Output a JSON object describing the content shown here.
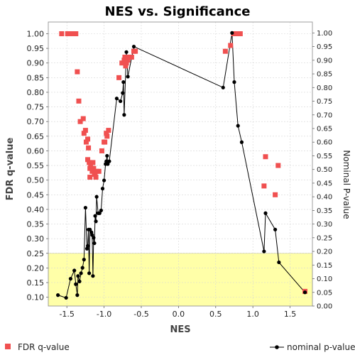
{
  "chart_data": {
    "type": "scatter",
    "title": "NES vs. Significance",
    "xlabel": "NES",
    "ylabel_left": "FDR q-value",
    "ylabel_right": "Nominal P-value",
    "xlim": [
      -1.75,
      1.8
    ],
    "ylim_left": [
      0.07,
      1.04
    ],
    "ylim_right": [
      0.0,
      1.04
    ],
    "x_ticks": [
      "-1.5",
      "-1.0",
      "-0.5",
      "0.0",
      "0.5",
      "1.0",
      "1.5"
    ],
    "y_ticks_left": [
      "0.10",
      "0.15",
      "0.20",
      "0.25",
      "0.30",
      "0.35",
      "0.40",
      "0.45",
      "0.50",
      "0.55",
      "0.60",
      "0.65",
      "0.70",
      "0.75",
      "0.80",
      "0.85",
      "0.90",
      "0.95",
      "1.00"
    ],
    "y_ticks_right": [
      "0.00",
      "0.05",
      "0.10",
      "0.15",
      "0.20",
      "0.25",
      "0.30",
      "0.35",
      "0.40",
      "0.45",
      "0.50",
      "0.55",
      "0.60",
      "0.65",
      "0.70",
      "0.75",
      "0.80",
      "0.85",
      "0.90",
      "0.95",
      "1.00"
    ],
    "threshold": {
      "fdr": 0.25,
      "color": "#ffffa8"
    },
    "grid": true,
    "legend_position": "bottom",
    "series": [
      {
        "name": "FDR q-value",
        "kind": "square-markers",
        "color": "#f05050",
        "points": [
          [
            -1.57,
            1.0
          ],
          [
            -1.49,
            1.0
          ],
          [
            -1.43,
            1.0
          ],
          [
            -1.38,
            1.0
          ],
          [
            -1.36,
            0.87
          ],
          [
            -1.34,
            0.77
          ],
          [
            -1.32,
            0.7
          ],
          [
            -1.28,
            0.71
          ],
          [
            -1.27,
            0.66
          ],
          [
            -1.25,
            0.67
          ],
          [
            -1.24,
            0.63
          ],
          [
            -1.22,
            0.64
          ],
          [
            -1.21,
            0.61
          ],
          [
            -1.22,
            0.57
          ],
          [
            -1.2,
            0.56
          ],
          [
            -1.19,
            0.54
          ],
          [
            -1.18,
            0.55
          ],
          [
            -1.19,
            0.51
          ],
          [
            -1.16,
            0.53
          ],
          [
            -1.15,
            0.56
          ],
          [
            -1.14,
            0.54
          ],
          [
            -1.13,
            0.52
          ],
          [
            -1.12,
            0.52
          ],
          [
            -1.11,
            0.51
          ],
          [
            -1.1,
            0.53
          ],
          [
            -1.07,
            0.53
          ],
          [
            -1.03,
            0.6
          ],
          [
            -1.0,
            0.63
          ],
          [
            -0.99,
            0.63
          ],
          [
            -0.97,
            0.66
          ],
          [
            -0.96,
            0.65
          ],
          [
            -0.94,
            0.67
          ],
          [
            -0.8,
            0.85
          ],
          [
            -0.76,
            0.9
          ],
          [
            -0.73,
            0.91
          ],
          [
            -0.72,
            0.92
          ],
          [
            -0.71,
            0.89
          ],
          [
            -0.7,
            0.9
          ],
          [
            -0.68,
            0.91
          ],
          [
            -0.66,
            0.92
          ],
          [
            -0.63,
            0.92
          ],
          [
            -0.6,
            0.94
          ],
          [
            -0.58,
            0.94
          ],
          [
            0.63,
            0.94
          ],
          [
            0.7,
            0.96
          ],
          [
            0.74,
            1.0
          ],
          [
            0.78,
            1.0
          ],
          [
            0.83,
            1.0
          ],
          [
            1.15,
            0.48
          ],
          [
            1.17,
            0.58
          ],
          [
            1.3,
            0.45
          ],
          [
            1.34,
            0.55
          ],
          [
            1.7,
            0.12
          ]
        ]
      },
      {
        "name": "nominal p-value",
        "kind": "line-with-dots",
        "color": "#000000",
        "points": [
          [
            -1.62,
            0.04
          ],
          [
            -1.51,
            0.03
          ],
          [
            -1.45,
            0.1
          ],
          [
            -1.4,
            0.13
          ],
          [
            -1.38,
            0.08
          ],
          [
            -1.36,
            0.04
          ],
          [
            -1.35,
            0.11
          ],
          [
            -1.33,
            0.09
          ],
          [
            -1.31,
            0.12
          ],
          [
            -1.29,
            0.14
          ],
          [
            -1.27,
            0.17
          ],
          [
            -1.25,
            0.36
          ],
          [
            -1.23,
            0.21
          ],
          [
            -1.22,
            0.22
          ],
          [
            -1.21,
            0.28
          ],
          [
            -1.2,
            0.12
          ],
          [
            -1.19,
            0.28
          ],
          [
            -1.17,
            0.27
          ],
          [
            -1.16,
            0.26
          ],
          [
            -1.15,
            0.11
          ],
          [
            -1.14,
            0.25
          ],
          [
            -1.13,
            0.23
          ],
          [
            -1.12,
            0.33
          ],
          [
            -1.11,
            0.31
          ],
          [
            -1.1,
            0.4
          ],
          [
            -1.08,
            0.34
          ],
          [
            -1.06,
            0.34
          ],
          [
            -1.04,
            0.35
          ],
          [
            -1.02,
            0.43
          ],
          [
            -1.0,
            0.46
          ],
          [
            -0.98,
            0.52
          ],
          [
            -0.97,
            0.53
          ],
          [
            -0.96,
            0.55
          ],
          [
            -0.95,
            0.52
          ],
          [
            -0.93,
            0.53
          ],
          [
            -0.83,
            0.76
          ],
          [
            -0.78,
            0.75
          ],
          [
            -0.75,
            0.78
          ],
          [
            -0.74,
            0.82
          ],
          [
            -0.73,
            0.7
          ],
          [
            -0.7,
            0.93
          ],
          [
            -0.68,
            0.84
          ],
          [
            -0.6,
            0.95
          ],
          [
            0.6,
            0.8
          ],
          [
            0.72,
            1.0
          ],
          [
            0.75,
            0.82
          ],
          [
            0.8,
            0.66
          ],
          [
            0.85,
            0.6
          ],
          [
            1.15,
            0.2
          ],
          [
            1.17,
            0.34
          ],
          [
            1.3,
            0.28
          ],
          [
            1.35,
            0.16
          ],
          [
            1.7,
            0.05
          ]
        ]
      }
    ]
  }
}
